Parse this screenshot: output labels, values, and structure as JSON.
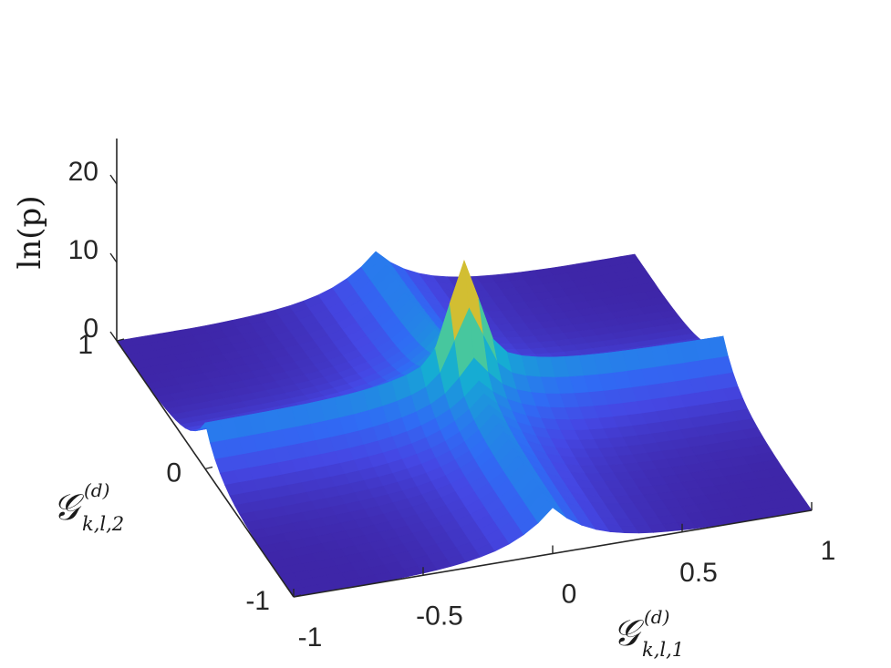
{
  "chart_data": {
    "type": "surface",
    "title": "",
    "colormap": "parula",
    "colormap_stops": [
      "#3e26a8",
      "#4547e4",
      "#2f6cf5",
      "#1f8fe0",
      "#16acd3",
      "#2ec2b0",
      "#5fcb8c",
      "#a8c63c",
      "#e8ba2d",
      "#f9e31f"
    ],
    "x_axis": {
      "label": "𝒢",
      "label_superscript": "(d)",
      "label_subscript": "k,l,1",
      "range": [
        -1,
        1
      ],
      "ticks": [
        "-1",
        "-0.5",
        "0",
        "0.5",
        "1"
      ]
    },
    "y_axis": {
      "label": "𝒢",
      "label_superscript": "(d)",
      "label_subscript": "k,l,2",
      "range": [
        -1,
        1
      ],
      "ticks": [
        "-1",
        "0",
        "1"
      ]
    },
    "z_axis": {
      "label": "ln(p)",
      "range": [
        0,
        25
      ],
      "ticks": [
        "0",
        "10",
        "20"
      ]
    },
    "description_of_surface": "ln(p) rises sharply along the lines x=0 and y=0, with a tall spike at the origin",
    "peak": {
      "x": 0,
      "y": 0,
      "z": 20
    },
    "ridge_value_near_axes": 11,
    "base_value": 0.5
  }
}
